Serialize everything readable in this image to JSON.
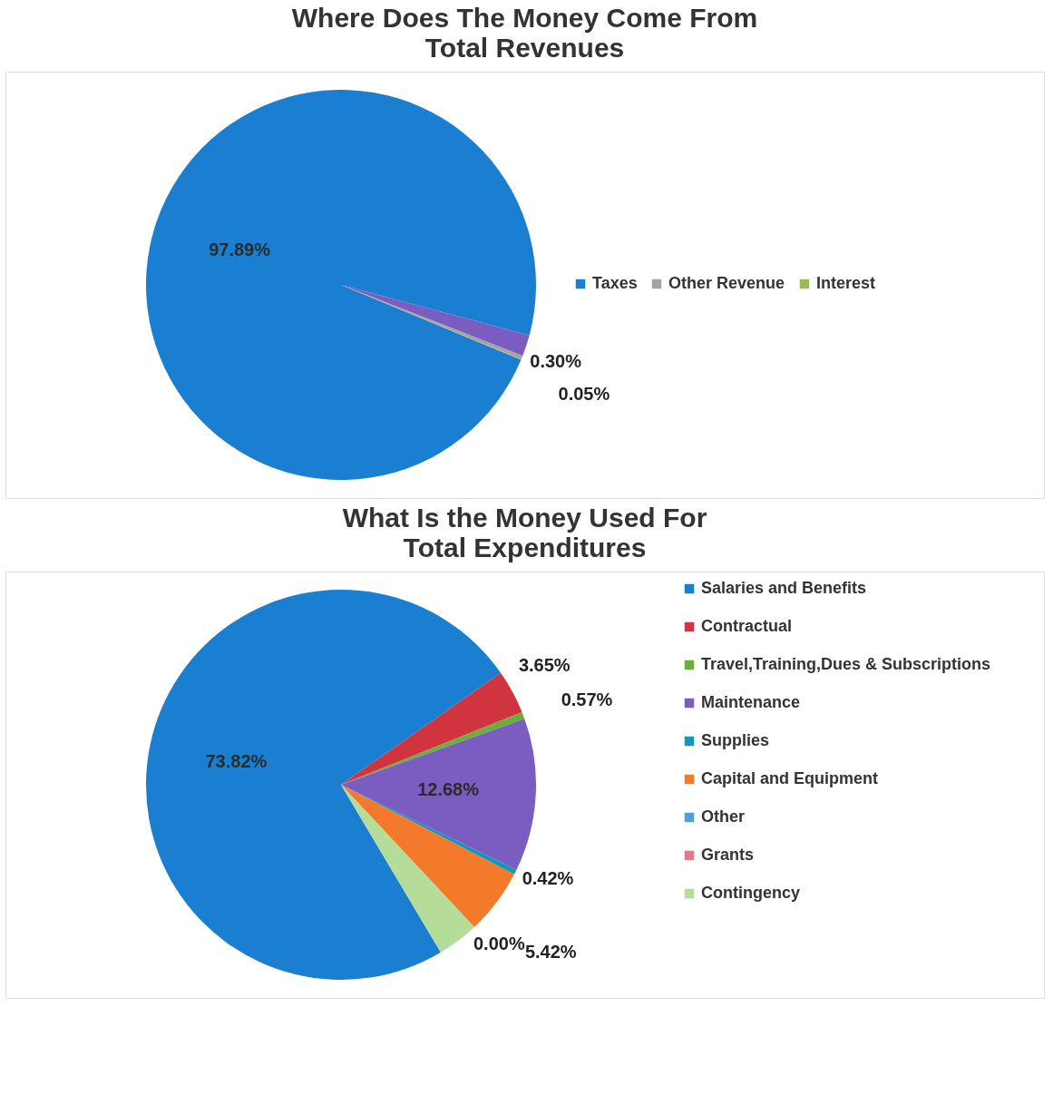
{
  "chart_data": [
    {
      "type": "pie",
      "title": "Where Does The Money Come From",
      "subtitle": "Total Revenues",
      "categories": [
        "Taxes",
        null,
        "Other Revenue",
        "Interest"
      ],
      "values": [
        97.89,
        1.76,
        0.3,
        0.05
      ],
      "value_labels": [
        "97.89%",
        null,
        "0.30%",
        "0.05%"
      ],
      "colors": [
        "#1a7fd0",
        "#7b5cc0",
        "#a3a3a3",
        "#9bbb59"
      ],
      "legend": "right"
    },
    {
      "type": "pie",
      "title": "What Is the Money Used For",
      "subtitle": "Total Expenditures",
      "categories": [
        "Salaries and Benefits",
        "Contractual",
        "Travel,Training,Dues & Subscriptions",
        "Maintenance",
        "Supplies",
        "Capital and Equipment",
        "Other",
        "Grants",
        "Contingency"
      ],
      "values": [
        73.82,
        3.65,
        0.57,
        12.68,
        0.42,
        5.42,
        0.0,
        0,
        3.44
      ],
      "value_labels": [
        "73.82%",
        "3.65%",
        "0.57%",
        "12.68%",
        "0.42%",
        "5.42%",
        "0.00%",
        null,
        null
      ],
      "colors": [
        "#1a7fd0",
        "#d0343f",
        "#6aae3c",
        "#7b5cc0",
        "#1596b8",
        "#f27a2a",
        "#4aa3e0",
        "#e07a8a",
        "#b6dc9a"
      ],
      "legend": "right"
    }
  ]
}
